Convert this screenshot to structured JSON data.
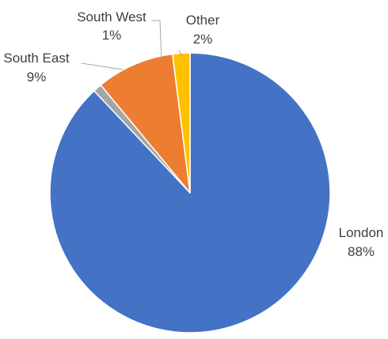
{
  "chart_data": {
    "type": "pie",
    "title": "",
    "start_angle_deg": 0,
    "direction": "clockwise",
    "slices": [
      {
        "name": "London",
        "value": 88,
        "percent_label": "88%",
        "color": "#4472C4"
      },
      {
        "name": "South West",
        "value": 1,
        "percent_label": "1%",
        "color": "#A5A5A5"
      },
      {
        "name": "South East",
        "value": 9,
        "percent_label": "9%",
        "color": "#ED7D31"
      },
      {
        "name": "Other",
        "value": 2,
        "percent_label": "2%",
        "color": "#FFC000"
      }
    ],
    "legend": "none",
    "data_labels": "category and percentage, outside with leader lines"
  }
}
